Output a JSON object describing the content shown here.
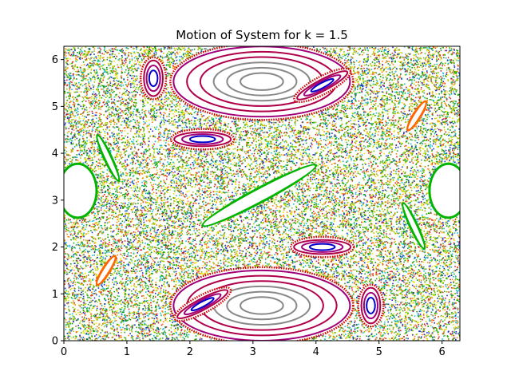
{
  "chart_data": {
    "type": "scatter",
    "title": "Motion of System for k = 1.5",
    "xlabel": "",
    "ylabel": "",
    "xlim": [
      0,
      6.2832
    ],
    "ylim": [
      0,
      6.2832
    ],
    "xticks": [
      0,
      1,
      2,
      3,
      4,
      5,
      6
    ],
    "yticks": [
      0,
      1,
      2,
      3,
      4,
      5,
      6
    ],
    "grid": false,
    "legend": "none",
    "colors": {
      "chaos": [
        "#b5c200",
        "#2ca02c",
        "#17becf",
        "#1f2fbf",
        "#d62728",
        "#ff7f0e",
        "#e6e600",
        "#7fbf00",
        "#00a000"
      ],
      "outer_ring_red": "#d40000",
      "purple_ring": "#a0007a",
      "crimson_ring": "#b0004a",
      "gray_ring": "#888888",
      "blue_ring": "#0000cc",
      "green_band": "#00b400",
      "orange_island": "#ff6600"
    },
    "series": [
      {
        "kind": "chaotic-sea"
      },
      {
        "kind": "large-island",
        "center": [
          3.14,
          0.75
        ],
        "rx": 1.4,
        "ry": 0.75,
        "rings": [
          "#a0007a",
          "#b0004a",
          "#b0004a",
          "#888888",
          "#888888",
          "#888888"
        ]
      },
      {
        "kind": "large-island",
        "center": [
          3.14,
          5.53
        ],
        "rx": 1.4,
        "ry": 0.75,
        "rings": [
          "#a0007a",
          "#b0004a",
          "#b0004a",
          "#888888",
          "#888888",
          "#888888"
        ]
      },
      {
        "kind": "small-island",
        "center": [
          2.2,
          0.78
        ],
        "rx": 0.45,
        "ry": 0.12,
        "angle": 28,
        "rings": [
          "#b0004a",
          "#a0007a",
          "#0000cc"
        ]
      },
      {
        "kind": "small-island",
        "center": [
          4.1,
          5.45
        ],
        "rx": 0.45,
        "ry": 0.12,
        "angle": 28,
        "rings": [
          "#b0004a",
          "#a0007a",
          "#0000cc"
        ]
      },
      {
        "kind": "small-island",
        "center": [
          2.2,
          4.3
        ],
        "rx": 0.45,
        "ry": 0.15,
        "angle": 0,
        "rings": [
          "#b0004a",
          "#a0007a",
          "#0000cc"
        ]
      },
      {
        "kind": "small-island",
        "center": [
          4.1,
          2.0
        ],
        "rx": 0.45,
        "ry": 0.15,
        "angle": 0,
        "rings": [
          "#b0004a",
          "#a0007a",
          "#0000cc"
        ]
      },
      {
        "kind": "small-island",
        "center": [
          1.42,
          5.6
        ],
        "rx": 0.15,
        "ry": 0.38,
        "angle": 0,
        "rings": [
          "#b0004a",
          "#a0007a",
          "#0000cc"
        ]
      },
      {
        "kind": "small-island",
        "center": [
          4.87,
          0.75
        ],
        "rx": 0.15,
        "ry": 0.38,
        "angle": 0,
        "rings": [
          "#b0004a",
          "#a0007a",
          "#0000cc"
        ]
      },
      {
        "kind": "gap",
        "center": [
          3.1,
          3.1
        ],
        "rx": 1.0,
        "ry": 0.12,
        "angle": 28,
        "edge": "#00b400"
      },
      {
        "kind": "gap",
        "center": [
          0.22,
          3.2
        ],
        "rx": 0.28,
        "ry": 0.55,
        "angle": 0,
        "edge": "#00b400"
      },
      {
        "kind": "gap",
        "center": [
          6.1,
          3.2
        ],
        "rx": 0.28,
        "ry": 0.55,
        "angle": 0,
        "edge": "#00b400"
      },
      {
        "kind": "gap",
        "center": [
          0.67,
          1.5
        ],
        "rx": 0.25,
        "ry": 0.05,
        "angle": 58,
        "edge": "#ff6600"
      },
      {
        "kind": "gap",
        "center": [
          5.6,
          4.8
        ],
        "rx": 0.25,
        "ry": 0.05,
        "angle": 58,
        "edge": "#ff6600"
      },
      {
        "kind": "gap",
        "center": [
          0.7,
          3.9
        ],
        "rx": 0.38,
        "ry": 0.05,
        "angle": -65,
        "edge": "#00b400"
      },
      {
        "kind": "gap",
        "center": [
          5.55,
          2.45
        ],
        "rx": 0.38,
        "ry": 0.05,
        "angle": -65,
        "edge": "#00b400"
      }
    ]
  }
}
